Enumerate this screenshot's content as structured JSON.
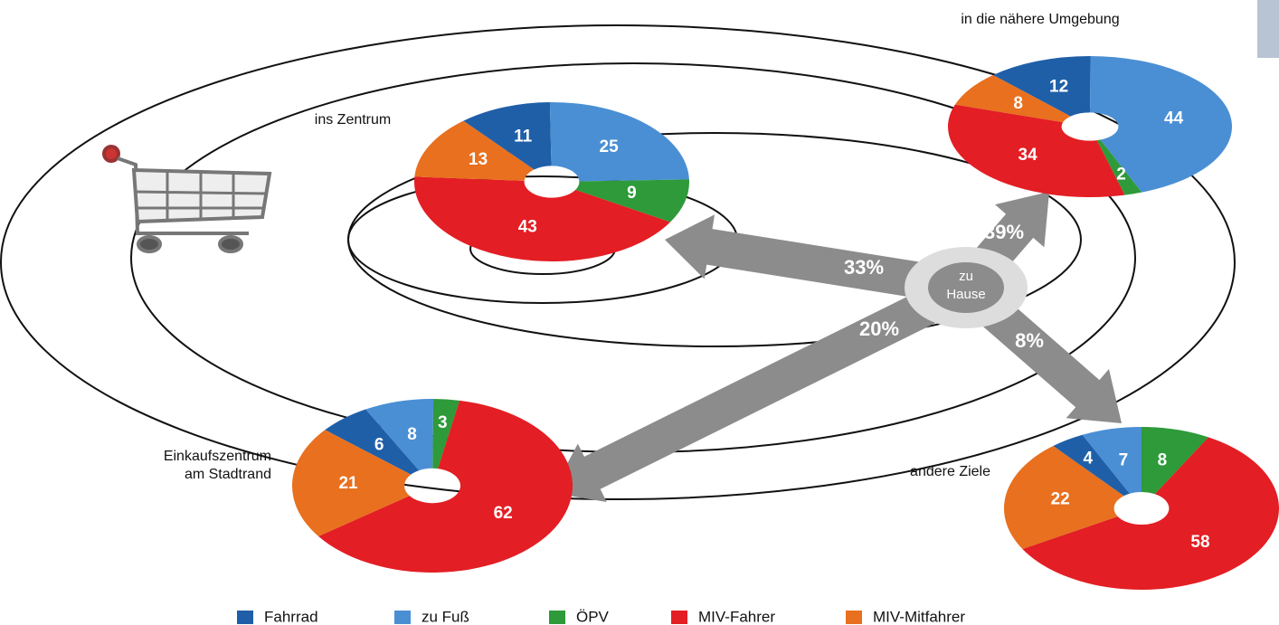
{
  "chart_data": [
    {
      "type": "pie",
      "title": [
        "ins Zentrum"
      ],
      "categories": [
        "Fahrrad",
        "zu Fuß",
        "ÖPV",
        "MIV-Fahrer",
        "MIV-Mitfahrer"
      ],
      "values": [
        11,
        25,
        9,
        43,
        13
      ],
      "colors": [
        "#1f5fa8",
        "#4a8fd4",
        "#2e9a3a",
        "#e31e24",
        "#e8701e"
      ],
      "share": 33,
      "share_label": "33%"
    },
    {
      "type": "pie",
      "title": [
        "in die nähere Umgebung"
      ],
      "categories": [
        "Fahrrad",
        "zu Fuß",
        "ÖPV",
        "MIV-Fahrer",
        "MIV-Mitfahrer"
      ],
      "values": [
        12,
        44,
        2,
        34,
        8
      ],
      "colors": [
        "#1f5fa8",
        "#4a8fd4",
        "#2e9a3a",
        "#e31e24",
        "#e8701e"
      ],
      "share": 39,
      "share_label": "39%"
    },
    {
      "type": "pie",
      "title": [
        "Einkaufszentrum",
        "am Stadtrand"
      ],
      "categories": [
        "Fahrrad",
        "zu Fuß",
        "ÖPV",
        "MIV-Fahrer",
        "MIV-Mitfahrer"
      ],
      "values": [
        6,
        8,
        3,
        62,
        21
      ],
      "colors": [
        "#1f5fa8",
        "#4a8fd4",
        "#2e9a3a",
        "#e31e24",
        "#e8701e"
      ],
      "share": 20,
      "share_label": "20%"
    },
    {
      "type": "pie",
      "title": [
        "andere Ziele"
      ],
      "categories": [
        "Fahrrad",
        "zu Fuß",
        "ÖPV",
        "MIV-Fahrer",
        "MIV-Mitfahrer"
      ],
      "values": [
        4,
        7,
        8,
        58,
        22
      ],
      "colors": [
        "#1f5fa8",
        "#4a8fd4",
        "#2e9a3a",
        "#e31e24",
        "#e8701e"
      ],
      "share": 8,
      "share_label": "8%"
    }
  ],
  "center_label": [
    "zu",
    "Hause"
  ]
}
